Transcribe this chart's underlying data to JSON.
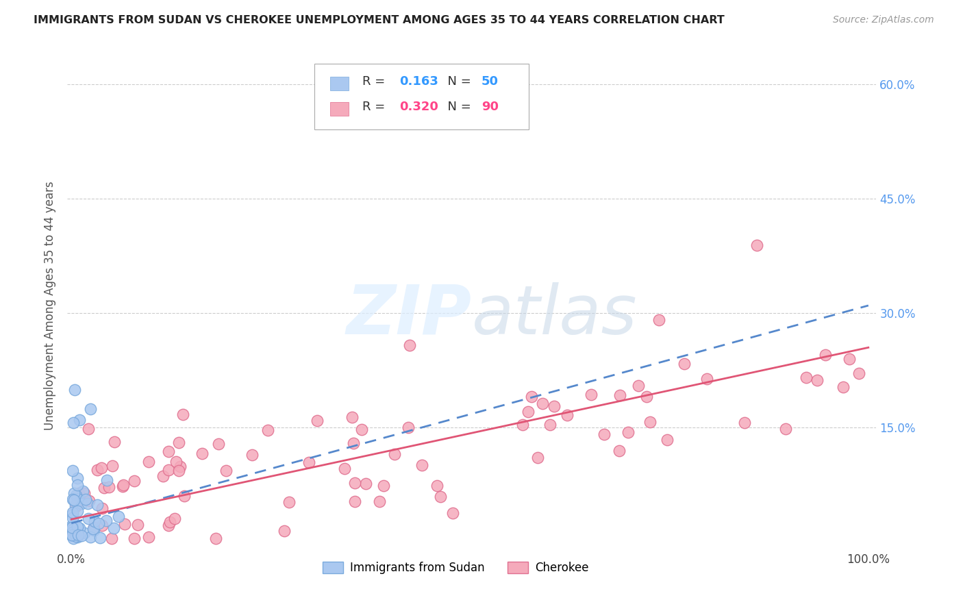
{
  "title": "IMMIGRANTS FROM SUDAN VS CHEROKEE UNEMPLOYMENT AMONG AGES 35 TO 44 YEARS CORRELATION CHART",
  "source": "Source: ZipAtlas.com",
  "ylabel": "Unemployment Among Ages 35 to 44 years",
  "sudan_R": 0.163,
  "sudan_N": 50,
  "cherokee_R": 0.32,
  "cherokee_N": 90,
  "sudan_fill": "#aac8f0",
  "sudan_edge": "#7aaadd",
  "cherokee_fill": "#f5aabb",
  "cherokee_edge": "#e07090",
  "sudan_line_color": "#5588cc",
  "cherokee_line_color": "#e05575",
  "grid_color": "#cccccc",
  "right_tick_color": "#5599ee",
  "watermark_color": "#ddeeff",
  "legend_R_color_sudan": "#3399ff",
  "legend_N_color_sudan": "#3399ff",
  "legend_R_color_cherokee": "#ff4488",
  "legend_N_color_cherokee": "#ff4488",
  "xlim": [
    -0.005,
    1.01
  ],
  "ylim": [
    -0.01,
    0.63
  ],
  "xticks": [
    0.0,
    0.25,
    0.5,
    0.75,
    1.0
  ],
  "xtick_labels": [
    "0.0%",
    "",
    "",
    "",
    "100.0%"
  ],
  "yticks_right": [
    0.15,
    0.3,
    0.45,
    0.6
  ],
  "ytick_labels_right": [
    "15.0%",
    "30.0%",
    "45.0%",
    "60.0%"
  ],
  "sudan_trend_x": [
    0.0,
    1.0
  ],
  "sudan_trend_y": [
    0.025,
    0.31
  ],
  "cherokee_trend_x": [
    0.0,
    1.0
  ],
  "cherokee_trend_y": [
    0.03,
    0.255
  ]
}
